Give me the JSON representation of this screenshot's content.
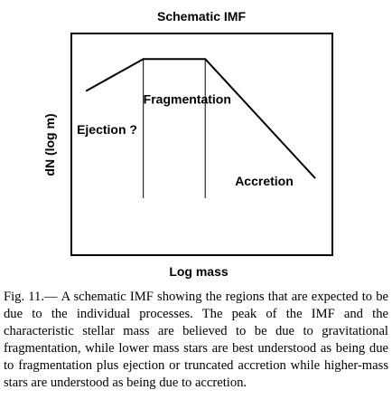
{
  "chart_data": {
    "type": "line",
    "title": "Schematic IMF",
    "xlabel": "Log mass",
    "ylabel": "dN (log m)",
    "xlim": [
      0,
      10
    ],
    "ylim": [
      0,
      10
    ],
    "series": [
      {
        "x": [
          0.6,
          3.1,
          5.8,
          10.6
        ],
        "y": [
          8.1,
          9.9,
          9.9,
          3.2
        ]
      }
    ],
    "vertical_markers": [
      3.1,
      5.8
    ],
    "annotations": [
      {
        "text": "Fragmentation",
        "x": 3.1,
        "y": 7.4
      },
      {
        "text": "Ejection ?",
        "x": 0.2,
        "y": 5.7
      },
      {
        "text": "Accretion",
        "x": 7.1,
        "y": 2.8
      }
    ],
    "grid": false,
    "legend": false
  },
  "caption": {
    "label": "Fig.  11.—",
    "text": "A schematic IMF showing the regions that are expected to be due to the individual processes. The peak of the IMF and the characteristic stellar mass are believed to be due to gravitational fragmentation, while lower mass stars are best understood as being due to fragmentation plus ejection or truncated accretion while higher-mass stars are understood as being due to accretion."
  }
}
